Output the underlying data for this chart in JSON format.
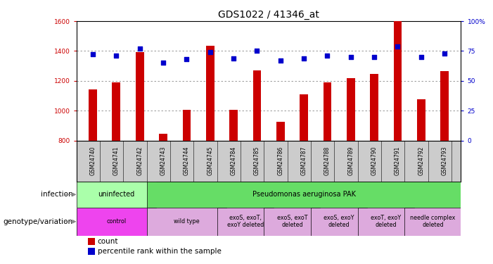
{
  "title": "GDS1022 / 41346_at",
  "samples": [
    "GSM24740",
    "GSM24741",
    "GSM24742",
    "GSM24743",
    "GSM24744",
    "GSM24745",
    "GSM24784",
    "GSM24785",
    "GSM24786",
    "GSM24787",
    "GSM24788",
    "GSM24789",
    "GSM24790",
    "GSM24791",
    "GSM24792",
    "GSM24793"
  ],
  "counts": [
    1140,
    1190,
    1390,
    845,
    1005,
    1435,
    1005,
    1270,
    925,
    1110,
    1190,
    1220,
    1245,
    1600,
    1075,
    1265
  ],
  "percentiles": [
    72,
    71,
    77,
    65,
    68,
    74,
    69,
    75,
    67,
    69,
    71,
    70,
    70,
    79,
    70,
    73
  ],
  "ylim_left": [
    800,
    1600
  ],
  "ylim_right": [
    0,
    100
  ],
  "yticks_left": [
    800,
    1000,
    1200,
    1400,
    1600
  ],
  "yticks_right": [
    0,
    25,
    50,
    75,
    100
  ],
  "bar_color": "#cc0000",
  "dot_color": "#0000cc",
  "sample_bg": "#cccccc",
  "infection_row": [
    {
      "label": "uninfected",
      "start": 0,
      "end": 3,
      "color": "#aaffaa"
    },
    {
      "label": "Pseudomonas aeruginosa PAK",
      "start": 3,
      "end": 16,
      "color": "#66dd66"
    }
  ],
  "genotype_row": [
    {
      "label": "control",
      "start": 0,
      "end": 3,
      "color": "#ee44ee"
    },
    {
      "label": "wild type",
      "start": 3,
      "end": 6,
      "color": "#ddaadd"
    },
    {
      "label": "exoS, exoT,\nexoY deleted",
      "start": 6,
      "end": 8,
      "color": "#ddaadd"
    },
    {
      "label": "exoS, exoT\ndeleted",
      "start": 8,
      "end": 10,
      "color": "#ddaadd"
    },
    {
      "label": "exoS, exoY\ndeleted",
      "start": 10,
      "end": 12,
      "color": "#ddaadd"
    },
    {
      "label": "exoT, exoY\ndeleted",
      "start": 12,
      "end": 14,
      "color": "#ddaadd"
    },
    {
      "label": "needle complex\ndeleted",
      "start": 14,
      "end": 16,
      "color": "#ddaadd"
    }
  ],
  "infection_label": "infection",
  "genotype_label": "genotype/variation",
  "legend_count": "count",
  "legend_percentile": "percentile rank within the sample",
  "bar_width": 0.35,
  "grid_color": "#888888",
  "bg_color": "#ffffff",
  "title_fontsize": 10,
  "tick_fontsize": 6.5,
  "label_fontsize": 7.5
}
